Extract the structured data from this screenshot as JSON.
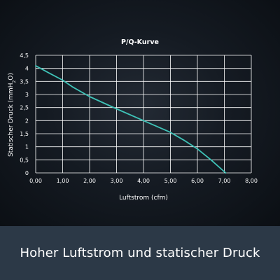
{
  "chart_data": {
    "type": "line",
    "title": "P/Q-Kurve",
    "xlabel": "Luftstrom (cfm)",
    "ylabel_prefix": "Statischer Druck (mmH",
    "ylabel_sub": "2",
    "ylabel_suffix": "O)",
    "xlim": [
      0,
      8
    ],
    "ylim": [
      0,
      4.5
    ],
    "grid": true,
    "x_ticks": [
      0,
      1,
      2,
      3,
      4,
      5,
      6,
      7,
      8
    ],
    "x_tick_labels": [
      "0,00",
      "1,00",
      "2,00",
      "3,00",
      "4,00",
      "5,00",
      "6,00",
      "7,00",
      "8,00"
    ],
    "y_ticks": [
      0,
      0.5,
      1,
      1.5,
      2,
      2.5,
      3,
      3.5,
      4,
      4.5
    ],
    "y_tick_labels": [
      "0",
      "0,5",
      "1",
      "1,5",
      "2",
      "2,5",
      "3",
      "3,5",
      "4",
      "4,5"
    ],
    "series": [
      {
        "color": "#3fc3b8",
        "x": [
          0.0,
          0.5,
          1.0,
          1.35,
          2.0,
          3.0,
          4.0,
          5.0,
          5.5,
          6.0,
          6.5,
          7.05
        ],
        "y": [
          4.1,
          3.82,
          3.55,
          3.3,
          2.92,
          2.45,
          2.0,
          1.55,
          1.25,
          0.92,
          0.5,
          0.0
        ]
      }
    ]
  },
  "footer": {
    "caption": "Hoher Luftstrom und statischer Druck"
  }
}
